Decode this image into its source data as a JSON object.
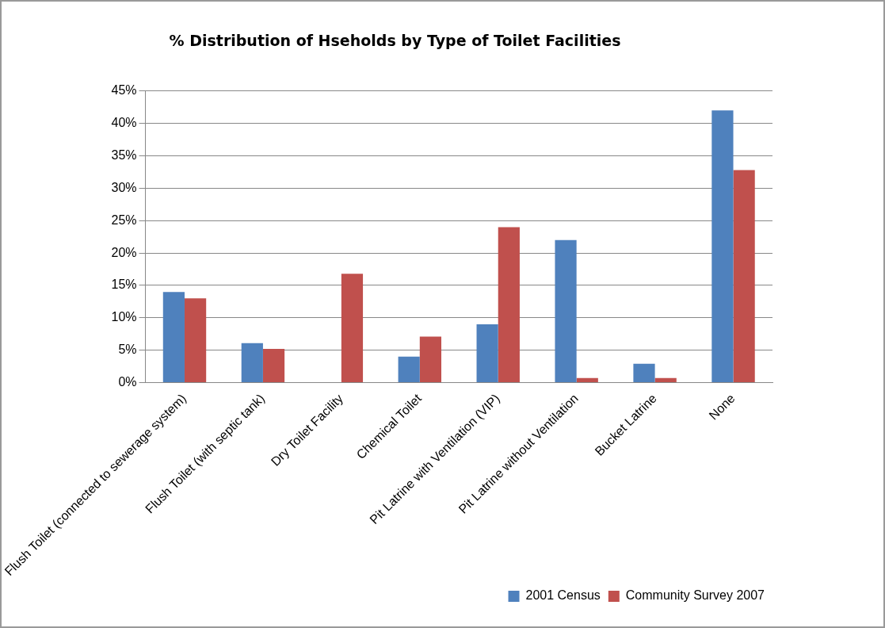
{
  "chart_data": {
    "type": "bar",
    "title": "% Distribution of Hseholds by Type of Toilet Facilities",
    "categories": [
      "Flush Toilet (connected to sewerage system)",
      "Flush Toilet (with septic tank)",
      "Dry Toilet Facility",
      "Chemical Toilet",
      "Pit Latrine with Ventilation (VIP)",
      "Pit Latrine without Ventilation",
      "Bucket Latrine",
      "None"
    ],
    "series": [
      {
        "name": "2001 Census",
        "color": "#4f81bd",
        "values": [
          14,
          6.1,
          0,
          4,
          9,
          22,
          2.9,
          42
        ]
      },
      {
        "name": "Community Survey 2007",
        "color": "#c0504d",
        "values": [
          13,
          5.2,
          16.8,
          7.1,
          24,
          0.7,
          0.7,
          32.8
        ]
      }
    ],
    "ylim": [
      0,
      45
    ],
    "yticks": [
      {
        "value": 0,
        "label": "0%"
      },
      {
        "value": 5,
        "label": "5%"
      },
      {
        "value": 10,
        "label": "10%"
      },
      {
        "value": 15,
        "label": "15%"
      },
      {
        "value": 20,
        "label": "20%"
      },
      {
        "value": 25,
        "label": "25%"
      },
      {
        "value": 30,
        "label": "30%"
      },
      {
        "value": 35,
        "label": "35%"
      },
      {
        "value": 40,
        "label": "40%"
      },
      {
        "value": 45,
        "label": "45%"
      }
    ],
    "grid": "y",
    "legend": "bottom right"
  }
}
